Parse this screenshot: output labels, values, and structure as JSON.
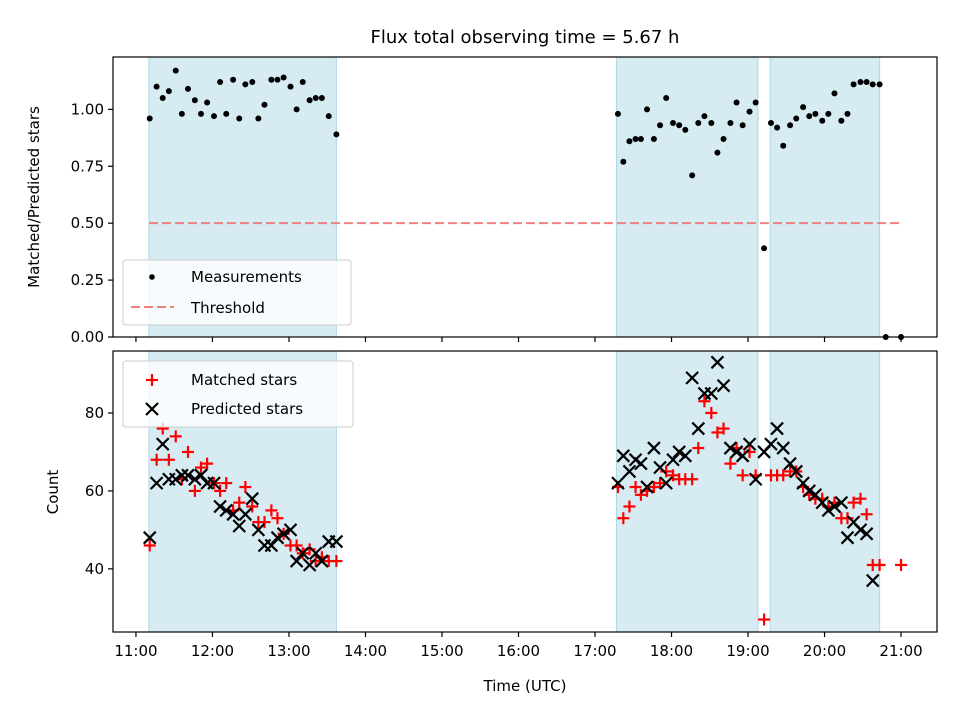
{
  "chart_data": [
    {
      "type": "scatter",
      "title": "Flux total observing time = 5.67 h",
      "xlabel": "",
      "ylabel": "Matched/Predicted stars",
      "xlim_hours": [
        10.7,
        21.47
      ],
      "ylim": [
        0.0,
        1.23
      ],
      "yticks": [
        0.0,
        0.25,
        0.5,
        0.75,
        1.0
      ],
      "ytick_labels": [
        "0.00",
        "0.25",
        "0.50",
        "0.75",
        "1.00"
      ],
      "legend": {
        "placement": "lower-left",
        "entries": [
          "Measurements",
          "Threshold"
        ]
      },
      "shaded_spans_hours": [
        [
          11.17,
          13.62
        ],
        [
          17.28,
          19.13
        ],
        [
          19.29,
          20.72
        ]
      ],
      "threshold": {
        "name": "Threshold",
        "value": 0.5,
        "x_range_hours": [
          11.17,
          21.0
        ],
        "color": "#f08080"
      },
      "series": [
        {
          "name": "Measurements",
          "color": "#000000",
          "points": [
            [
              11.18,
              0.96
            ],
            [
              11.27,
              1.1
            ],
            [
              11.35,
              1.05
            ],
            [
              11.43,
              1.08
            ],
            [
              11.52,
              1.17
            ],
            [
              11.6,
              0.98
            ],
            [
              11.68,
              1.09
            ],
            [
              11.77,
              1.04
            ],
            [
              11.85,
              0.98
            ],
            [
              11.93,
              1.03
            ],
            [
              12.02,
              0.97
            ],
            [
              12.1,
              1.12
            ],
            [
              12.18,
              0.98
            ],
            [
              12.27,
              1.13
            ],
            [
              12.35,
              0.96
            ],
            [
              12.43,
              1.11
            ],
            [
              12.52,
              1.12
            ],
            [
              12.6,
              0.96
            ],
            [
              12.68,
              1.02
            ],
            [
              12.77,
              1.13
            ],
            [
              12.85,
              1.13
            ],
            [
              12.93,
              1.14
            ],
            [
              13.02,
              1.1
            ],
            [
              13.1,
              1.0
            ],
            [
              13.18,
              1.12
            ],
            [
              13.27,
              1.04
            ],
            [
              13.35,
              1.05
            ],
            [
              13.43,
              1.05
            ],
            [
              13.52,
              0.97
            ],
            [
              13.62,
              0.89
            ],
            [
              17.3,
              0.98
            ],
            [
              17.37,
              0.77
            ],
            [
              17.45,
              0.86
            ],
            [
              17.53,
              0.87
            ],
            [
              17.6,
              0.87
            ],
            [
              17.68,
              1.0
            ],
            [
              17.77,
              0.87
            ],
            [
              17.85,
              0.93
            ],
            [
              17.93,
              1.05
            ],
            [
              18.02,
              0.94
            ],
            [
              18.1,
              0.93
            ],
            [
              18.18,
              0.91
            ],
            [
              18.27,
              0.71
            ],
            [
              18.35,
              0.94
            ],
            [
              18.43,
              0.97
            ],
            [
              18.52,
              0.94
            ],
            [
              18.6,
              0.81
            ],
            [
              18.68,
              0.87
            ],
            [
              18.77,
              0.94
            ],
            [
              18.85,
              1.03
            ],
            [
              18.93,
              0.93
            ],
            [
              19.02,
              0.99
            ],
            [
              19.1,
              1.03
            ],
            [
              19.21,
              0.39
            ],
            [
              19.3,
              0.94
            ],
            [
              19.38,
              0.92
            ],
            [
              19.46,
              0.84
            ],
            [
              19.55,
              0.93
            ],
            [
              19.63,
              0.96
            ],
            [
              19.72,
              1.01
            ],
            [
              19.8,
              0.97
            ],
            [
              19.88,
              0.98
            ],
            [
              19.97,
              0.95
            ],
            [
              20.05,
              0.98
            ],
            [
              20.13,
              1.07
            ],
            [
              20.22,
              0.95
            ],
            [
              20.3,
              0.98
            ],
            [
              20.38,
              1.11
            ],
            [
              20.47,
              1.12
            ],
            [
              20.55,
              1.12
            ],
            [
              20.63,
              1.11
            ],
            [
              20.72,
              1.11
            ],
            [
              20.8,
              0.0
            ],
            [
              21.0,
              0.0
            ]
          ]
        }
      ]
    },
    {
      "type": "scatter",
      "title": "",
      "xlabel": "Time (UTC)",
      "ylabel": "Count",
      "xlim_hours": [
        10.7,
        21.47
      ],
      "ylim": [
        23.8,
        95.9
      ],
      "yticks": [
        40,
        60,
        80
      ],
      "ytick_labels": [
        "40",
        "60",
        "80"
      ],
      "xticks_hours": [
        11,
        12,
        13,
        14,
        15,
        16,
        17,
        18,
        19,
        20,
        21
      ],
      "xtick_labels": [
        "11:00",
        "12:00",
        "13:00",
        "14:00",
        "15:00",
        "16:00",
        "17:00",
        "18:00",
        "19:00",
        "20:00",
        "21:00"
      ],
      "legend": {
        "placement": "upper-left",
        "entries": [
          "Matched stars",
          "Predicted stars"
        ]
      },
      "shaded_spans_hours": [
        [
          11.17,
          13.62
        ],
        [
          17.28,
          19.13
        ],
        [
          19.29,
          20.72
        ]
      ],
      "series": [
        {
          "name": "Matched stars",
          "marker": "plus",
          "color": "#ff0000",
          "points": [
            [
              11.18,
              46
            ],
            [
              11.27,
              68
            ],
            [
              11.35,
              76
            ],
            [
              11.43,
              68
            ],
            [
              11.52,
              74
            ],
            [
              11.6,
              63
            ],
            [
              11.68,
              70
            ],
            [
              11.77,
              60
            ],
            [
              11.85,
              66
            ],
            [
              11.93,
              67
            ],
            [
              12.02,
              62
            ],
            [
              12.1,
              60
            ],
            [
              12.18,
              62
            ],
            [
              12.27,
              55
            ],
            [
              12.35,
              57
            ],
            [
              12.43,
              61
            ],
            [
              12.52,
              56
            ],
            [
              12.6,
              52
            ],
            [
              12.68,
              52
            ],
            [
              12.77,
              55
            ],
            [
              12.85,
              53
            ],
            [
              12.93,
              49
            ],
            [
              13.02,
              46
            ],
            [
              13.1,
              46
            ],
            [
              13.18,
              44
            ],
            [
              13.27,
              45
            ],
            [
              13.35,
              42
            ],
            [
              13.43,
              43
            ],
            [
              13.52,
              42
            ],
            [
              13.62,
              42
            ],
            [
              17.3,
              61
            ],
            [
              17.37,
              53
            ],
            [
              17.45,
              56
            ],
            [
              17.53,
              61
            ],
            [
              17.6,
              59
            ],
            [
              17.68,
              60
            ],
            [
              17.77,
              61
            ],
            [
              17.85,
              62
            ],
            [
              17.93,
              65
            ],
            [
              18.02,
              64
            ],
            [
              18.1,
              63
            ],
            [
              18.18,
              63
            ],
            [
              18.27,
              63
            ],
            [
              18.35,
              71
            ],
            [
              18.43,
              83
            ],
            [
              18.52,
              80
            ],
            [
              18.6,
              75
            ],
            [
              18.68,
              76
            ],
            [
              18.77,
              67
            ],
            [
              18.85,
              71
            ],
            [
              18.93,
              64
            ],
            [
              19.02,
              70
            ],
            [
              19.1,
              64
            ],
            [
              19.21,
              27
            ],
            [
              19.3,
              64
            ],
            [
              19.38,
              64
            ],
            [
              19.46,
              64
            ],
            [
              19.55,
              65
            ],
            [
              19.63,
              65
            ],
            [
              19.72,
              61
            ],
            [
              19.8,
              59
            ],
            [
              19.88,
              58
            ],
            [
              19.97,
              58
            ],
            [
              20.05,
              56
            ],
            [
              20.13,
              57
            ],
            [
              20.22,
              53
            ],
            [
              20.3,
              53
            ],
            [
              20.38,
              57
            ],
            [
              20.47,
              58
            ],
            [
              20.55,
              54
            ],
            [
              20.63,
              41
            ],
            [
              20.72,
              41
            ],
            [
              21.0,
              41
            ]
          ]
        },
        {
          "name": "Predicted stars",
          "marker": "x",
          "color": "#000000",
          "points": [
            [
              11.18,
              48
            ],
            [
              11.27,
              62
            ],
            [
              11.35,
              72
            ],
            [
              11.43,
              63
            ],
            [
              11.52,
              63
            ],
            [
              11.6,
              64
            ],
            [
              11.68,
              64
            ],
            [
              11.77,
              63
            ],
            [
              11.85,
              64
            ],
            [
              11.93,
              62
            ],
            [
              12.02,
              62
            ],
            [
              12.1,
              56
            ],
            [
              12.18,
              55
            ],
            [
              12.27,
              54
            ],
            [
              12.35,
              51
            ],
            [
              12.43,
              54
            ],
            [
              12.52,
              58
            ],
            [
              12.6,
              50
            ],
            [
              12.68,
              46
            ],
            [
              12.77,
              46
            ],
            [
              12.85,
              48
            ],
            [
              12.93,
              49
            ],
            [
              13.02,
              50
            ],
            [
              13.1,
              42
            ],
            [
              13.18,
              44
            ],
            [
              13.27,
              41
            ],
            [
              13.35,
              44
            ],
            [
              13.43,
              42
            ],
            [
              13.52,
              47
            ],
            [
              13.62,
              47
            ],
            [
              17.3,
              62
            ],
            [
              17.37,
              69
            ],
            [
              17.45,
              65
            ],
            [
              17.53,
              68
            ],
            [
              17.6,
              67
            ],
            [
              17.68,
              61
            ],
            [
              17.77,
              71
            ],
            [
              17.85,
              66
            ],
            [
              17.93,
              62
            ],
            [
              18.02,
              68
            ],
            [
              18.1,
              70
            ],
            [
              18.18,
              69
            ],
            [
              18.27,
              89
            ],
            [
              18.35,
              76
            ],
            [
              18.43,
              85
            ],
            [
              18.52,
              85
            ],
            [
              18.6,
              93
            ],
            [
              18.68,
              87
            ],
            [
              18.77,
              71
            ],
            [
              18.85,
              70
            ],
            [
              18.93,
              69
            ],
            [
              19.02,
              72
            ],
            [
              19.1,
              63
            ],
            [
              19.21,
              70
            ],
            [
              19.3,
              72
            ],
            [
              19.38,
              76
            ],
            [
              19.46,
              71
            ],
            [
              19.55,
              67
            ],
            [
              19.63,
              65
            ],
            [
              19.72,
              62
            ],
            [
              19.8,
              60
            ],
            [
              19.88,
              59
            ],
            [
              19.97,
              57
            ],
            [
              20.05,
              55
            ],
            [
              20.13,
              56
            ],
            [
              20.22,
              57
            ],
            [
              20.3,
              48
            ],
            [
              20.38,
              52
            ],
            [
              20.47,
              50
            ],
            [
              20.55,
              49
            ],
            [
              20.63,
              37
            ]
          ]
        }
      ]
    }
  ]
}
